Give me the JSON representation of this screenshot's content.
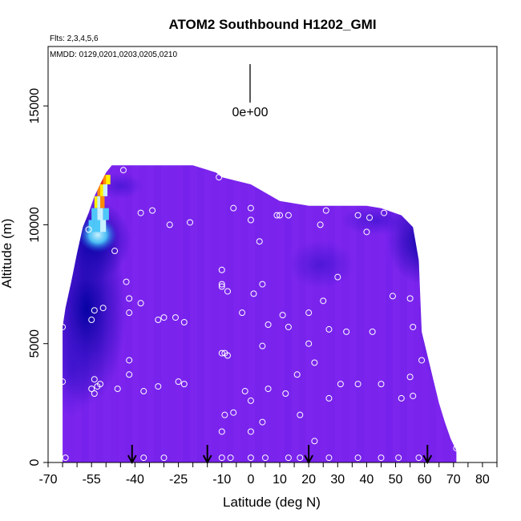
{
  "chart_data": {
    "type": "heatmap",
    "title": "ATOM2 Southbound H1202_GMI",
    "annotations": {
      "flights": "Flts: 2,3,4,5,6",
      "dates": "MMDD: 0129,0201,0203,0205,0210",
      "scale_value": "0e+00"
    },
    "xlabel": "Latitude (deg N)",
    "ylabel": "Altitude (m)",
    "xlim": [
      -70,
      85
    ],
    "ylim": [
      0,
      17500
    ],
    "x_ticks": [
      -70,
      -55,
      -40,
      -25,
      -10,
      0,
      10,
      20,
      30,
      40,
      50,
      60,
      70,
      80
    ],
    "x_tick_labels": [
      "-70",
      "-55",
      "-40",
      "-25",
      "-10",
      "0",
      "10",
      "20",
      "30",
      "40",
      "50",
      "60",
      "70",
      "80"
    ],
    "x_minor_ticks": [
      -65,
      -60,
      -50,
      -45,
      -35,
      -30,
      -20,
      -15,
      -5,
      5,
      15,
      25,
      35,
      45,
      55,
      65,
      75,
      85
    ],
    "y_ticks": [
      0,
      5000,
      10000,
      15000
    ],
    "y_tick_labels": [
      "0",
      "5000",
      "10000",
      "15000"
    ],
    "arrow_latitudes": [
      -41,
      -15,
      20,
      61
    ],
    "field_boundary": {
      "lat": [
        -65,
        -65,
        -64,
        -62,
        -60,
        -58,
        -56,
        -54,
        -52,
        -50,
        -48,
        -20,
        -12,
        -10,
        0,
        10,
        20,
        30,
        40,
        45,
        52,
        56,
        58,
        59,
        61,
        63,
        65,
        67,
        69,
        71,
        71,
        -65
      ],
      "alt": [
        0,
        5700,
        6500,
        7600,
        8800,
        9900,
        10500,
        11200,
        11700,
        12200,
        12500,
        12500,
        12200,
        12000,
        11700,
        11000,
        10800,
        10800,
        10800,
        10700,
        10400,
        9900,
        8500,
        5500,
        4500,
        3500,
        2500,
        1700,
        1000,
        500,
        0,
        0
      ]
    },
    "colors": {
      "background_field": "#7b24ee",
      "dark_blue": "#0a0ab4",
      "navy": "#0000a0",
      "cyan": "#4ec8f8",
      "light_cyan": "#c8f0ff",
      "yellow": "#fff000",
      "orange": "#ff8c00",
      "red": "#e02020",
      "points": "#ffffff"
    },
    "sample_points": [
      [
        -65,
        5700
      ],
      [
        -65,
        3400
      ],
      [
        -64,
        200
      ],
      [
        -56,
        9800
      ],
      [
        -55,
        6000
      ],
      [
        -54,
        6400
      ],
      [
        -54,
        3500
      ],
      [
        -55,
        3100
      ],
      [
        -54,
        2900
      ],
      [
        -53,
        3200
      ],
      [
        -51,
        6500
      ],
      [
        -52,
        3300
      ],
      [
        -47,
        8900
      ],
      [
        -44,
        12300
      ],
      [
        -46,
        3100
      ],
      [
        -43,
        7600
      ],
      [
        -42,
        6900
      ],
      [
        -42,
        6300
      ],
      [
        -42,
        4300
      ],
      [
        -42,
        3700
      ],
      [
        -38,
        10500
      ],
      [
        -38,
        6700
      ],
      [
        -37,
        3000
      ],
      [
        -37,
        200
      ],
      [
        -34,
        10600
      ],
      [
        -32,
        6000
      ],
      [
        -30,
        6100
      ],
      [
        -32,
        3200
      ],
      [
        -30,
        200
      ],
      [
        -28,
        10000
      ],
      [
        -26,
        6100
      ],
      [
        -25,
        3400
      ],
      [
        -23,
        3300
      ],
      [
        -23,
        5900
      ],
      [
        -21,
        10100
      ],
      [
        -11,
        12000
      ],
      [
        -6,
        10700
      ],
      [
        -10,
        8100
      ],
      [
        -10,
        7500
      ],
      [
        -10,
        7400
      ],
      [
        -8,
        7200
      ],
      [
        -10,
        4600
      ],
      [
        -9,
        4600
      ],
      [
        -8,
        4500
      ],
      [
        -9,
        2000
      ],
      [
        -6,
        2100
      ],
      [
        -10,
        1300
      ],
      [
        -10,
        200
      ],
      [
        -7,
        200
      ],
      [
        -3,
        6300
      ],
      [
        -2,
        3000
      ],
      [
        0,
        10700
      ],
      [
        0,
        10200
      ],
      [
        1,
        7100
      ],
      [
        0,
        2600
      ],
      [
        0,
        1300
      ],
      [
        0,
        200
      ],
      [
        3,
        9300
      ],
      [
        4,
        7500
      ],
      [
        4,
        4900
      ],
      [
        4,
        1700
      ],
      [
        5,
        200
      ],
      [
        6,
        5800
      ],
      [
        6,
        3100
      ],
      [
        10,
        10400
      ],
      [
        9,
        10400
      ],
      [
        13,
        10400
      ],
      [
        11,
        6200
      ],
      [
        13,
        5700
      ],
      [
        12,
        2900
      ],
      [
        13,
        200
      ],
      [
        16,
        3700
      ],
      [
        17,
        2000
      ],
      [
        17,
        200
      ],
      [
        20,
        5000
      ],
      [
        20,
        6300
      ],
      [
        22,
        4200
      ],
      [
        22,
        900
      ],
      [
        24,
        10000
      ],
      [
        26,
        10600
      ],
      [
        25,
        6800
      ],
      [
        27,
        5600
      ],
      [
        27,
        2700
      ],
      [
        27,
        200
      ],
      [
        30,
        7800
      ],
      [
        31,
        3300
      ],
      [
        33,
        5500
      ],
      [
        37,
        10400
      ],
      [
        37,
        3300
      ],
      [
        37,
        200
      ],
      [
        41,
        10300
      ],
      [
        40,
        9700
      ],
      [
        42,
        5500
      ],
      [
        45,
        3300
      ],
      [
        45,
        200
      ],
      [
        46,
        10500
      ],
      [
        49,
        7000
      ],
      [
        52,
        2700
      ],
      [
        51,
        200
      ],
      [
        55,
        6900
      ],
      [
        56,
        5700
      ],
      [
        55,
        3600
      ],
      [
        56,
        2800
      ],
      [
        59,
        4300
      ],
      [
        58,
        200
      ],
      [
        71,
        600
      ]
    ]
  }
}
